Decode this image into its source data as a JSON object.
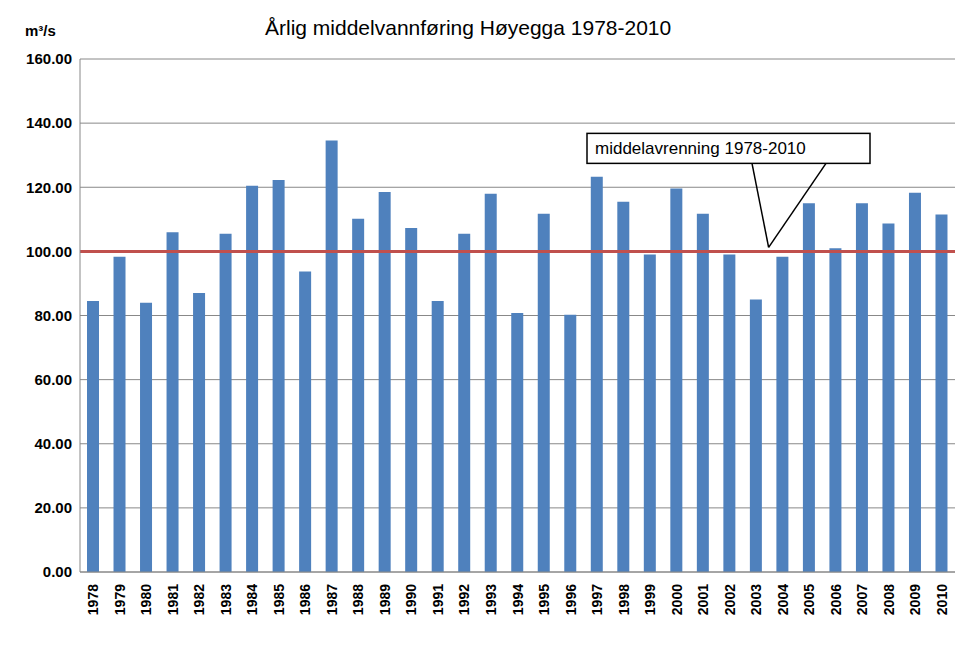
{
  "chart_data": {
    "type": "bar",
    "title": "Årlig middelvannføring Høyegga 1978-2010",
    "y_label": "m³/s",
    "categories": [
      "1978",
      "1979",
      "1980",
      "1981",
      "1982",
      "1983",
      "1984",
      "1985",
      "1986",
      "1987",
      "1988",
      "1989",
      "1990",
      "1991",
      "1992",
      "1993",
      "1994",
      "1995",
      "1996",
      "1997",
      "1998",
      "1999",
      "2000",
      "2001",
      "2002",
      "2003",
      "2004",
      "2005",
      "2006",
      "2007",
      "2008",
      "2009",
      "2010"
    ],
    "values": [
      84.5,
      98.3,
      84,
      106,
      87,
      105.5,
      120.5,
      122.3,
      93.7,
      134.6,
      110.2,
      118.5,
      107.3,
      84.5,
      105.5,
      118,
      80.8,
      111.7,
      80.2,
      123.3,
      115.5,
      99,
      119.6,
      111.7,
      99,
      85,
      98.3,
      115,
      101,
      115,
      108.7,
      118.3,
      111.5
    ],
    "color": "#4f81bd",
    "ylim": [
      0,
      160
    ],
    "yticks": [
      {
        "value": 0,
        "label": "0.00"
      },
      {
        "value": 20,
        "label": "20.00"
      },
      {
        "value": 40,
        "label": "40.00"
      },
      {
        "value": 60,
        "label": "60.00"
      },
      {
        "value": 80,
        "label": "80.00"
      },
      {
        "value": 100,
        "label": "100.00"
      },
      {
        "value": 120,
        "label": "120.00"
      },
      {
        "value": 140,
        "label": "140.00"
      },
      {
        "value": 160,
        "label": "160.00"
      }
    ],
    "grid": true,
    "reference_line": {
      "value": 100,
      "label": "middelavrenning 1978-2010",
      "color": "#c0504d"
    }
  }
}
